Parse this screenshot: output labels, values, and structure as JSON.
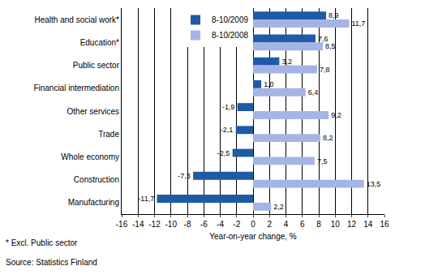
{
  "chart_data": {
    "type": "bar",
    "orientation": "horizontal",
    "categories": [
      "Health and social work*",
      "Education*",
      "Public sector",
      "Financial intermediation",
      "Other services",
      "Trade",
      "Whole economy",
      "Construction",
      "Manufacturing"
    ],
    "series": [
      {
        "name": "8-10/2009",
        "color": "#1f5aa6",
        "values": [
          8.9,
          7.6,
          3.2,
          1.0,
          -1.9,
          -2.1,
          -2.5,
          -7.3,
          -11.7
        ],
        "value_labels": [
          "8,9",
          "7,6",
          "3,2",
          "1,0",
          "-1,9",
          "-2,1",
          "-2,5",
          "-7,3",
          "-11,7"
        ]
      },
      {
        "name": "8-10/2008",
        "color": "#a4b4e4",
        "values": [
          11.7,
          8.5,
          7.8,
          6.4,
          9.2,
          8.2,
          7.5,
          13.5,
          2.2
        ],
        "value_labels": [
          "11,7",
          "8,5",
          "7,8",
          "6,4",
          "9,2",
          "8,2",
          "7,5",
          "13,5",
          "2,2"
        ]
      }
    ],
    "x_label": "Year-on-year change, %",
    "xlim": [
      -16,
      16
    ],
    "xticks": [
      -16,
      -14,
      -12,
      -10,
      -8,
      -6,
      -4,
      -2,
      0,
      2,
      4,
      6,
      8,
      10,
      12,
      14,
      16
    ],
    "grid": true,
    "legend": "top-left",
    "data_labels": true,
    "annotations": [
      "* Excl. Public sector",
      "Source: Statistics Finland"
    ]
  }
}
